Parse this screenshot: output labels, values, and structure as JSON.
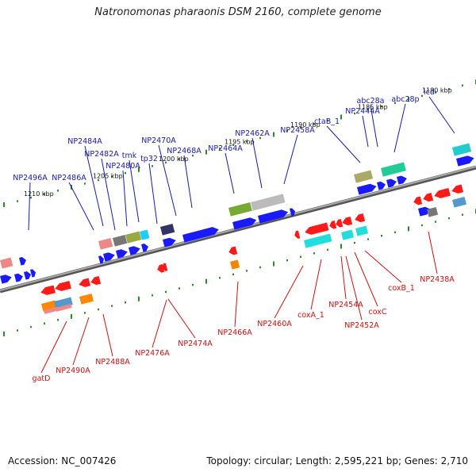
{
  "title": "Natronomonas pharaonis DSM 2160, complete genome",
  "accession": "Accession: NC_007426",
  "topology": "Topology: circular; Length: 2,595,221 bp; Genes: 2,710",
  "colors": {
    "forward": "#1a1aff",
    "reverse": "#ff1a1a",
    "backbone": "#888888",
    "tick": "#2a8a2a",
    "label_forward": "#1a1aaa",
    "label_reverse": "#cc1111"
  },
  "scale_labels": [
    "1210 kbp",
    "1205 kbp",
    "1200 kbp",
    "1195 kbp",
    "1190 kbp",
    "1185 kbp",
    "1180 kbp"
  ],
  "forward_labels": [
    "NP2496A",
    "NP2486A",
    "NP2484A",
    "NP2482A",
    "NP2480A",
    "tmk",
    "tp32",
    "NP2470A",
    "NP2468A",
    "NP2464A",
    "NP2462A",
    "NP2458A",
    "ctaB_1",
    "NP2444A",
    "abc28a",
    "abc28p",
    "icd"
  ],
  "reverse_labels": [
    "gatD",
    "NP2490A",
    "NP2488A",
    "NP2476A",
    "NP2474A",
    "NP2466A",
    "NP2460A",
    "coxA_1",
    "NP2454A",
    "NP2452A",
    "coxC",
    "coxB_1",
    "NP2438A"
  ]
}
